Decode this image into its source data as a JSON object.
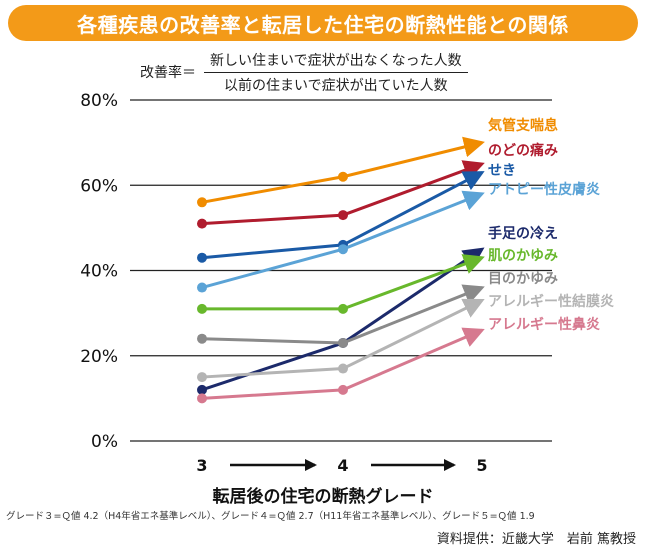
{
  "title": "各種疾患の改善率と転居した住宅の断熱性能との関係",
  "formula": {
    "lhs": "改善率＝",
    "numerator": "新しい住まいで症状が出なくなった人数",
    "denominator": "以前の住まいで症状が出ていた人数"
  },
  "xlabel": "転居後の住宅の断熱グレード",
  "note": "グレード３=Ｑ値 4.2（H4年省エネ基準レベル）、グレード４=Ｑ値 2.7（H11年省エネ基準レベル）、グレード５=Ｑ値 1.9",
  "source": "資料提供：近畿大学　岩前 篤教授",
  "chart_data": {
    "type": "line",
    "x": [
      "3",
      "4",
      "5"
    ],
    "ylim": [
      0,
      80
    ],
    "yticks": [
      "0%",
      "20%",
      "40%",
      "60%",
      "80%"
    ],
    "grid": true,
    "series": [
      {
        "name": "気管支喘息",
        "values": [
          56,
          62,
          70
        ],
        "color": "#f08c00"
      },
      {
        "name": "のどの痛み",
        "values": [
          51,
          53,
          65
        ],
        "color": "#b01c2e"
      },
      {
        "name": "せき",
        "values": [
          43,
          46,
          63
        ],
        "color": "#1a5aa6"
      },
      {
        "name": "アトピー性皮膚炎",
        "values": [
          36,
          45,
          58
        ],
        "color": "#5ba3d6"
      },
      {
        "name": "手足の冷え",
        "values": [
          12,
          23,
          45
        ],
        "color": "#1c2a6b"
      },
      {
        "name": "肌のかゆみ",
        "values": [
          31,
          31,
          43
        ],
        "color": "#68b82c"
      },
      {
        "name": "目のかゆみ",
        "values": [
          24,
          23,
          36
        ],
        "color": "#8a8a8a"
      },
      {
        "name": "アレルギー性結膜炎",
        "values": [
          15,
          17,
          33
        ],
        "color": "#b4b4b4"
      },
      {
        "name": "アレルギー性鼻炎",
        "values": [
          10,
          12,
          26
        ],
        "color": "#d6798f"
      }
    ]
  }
}
